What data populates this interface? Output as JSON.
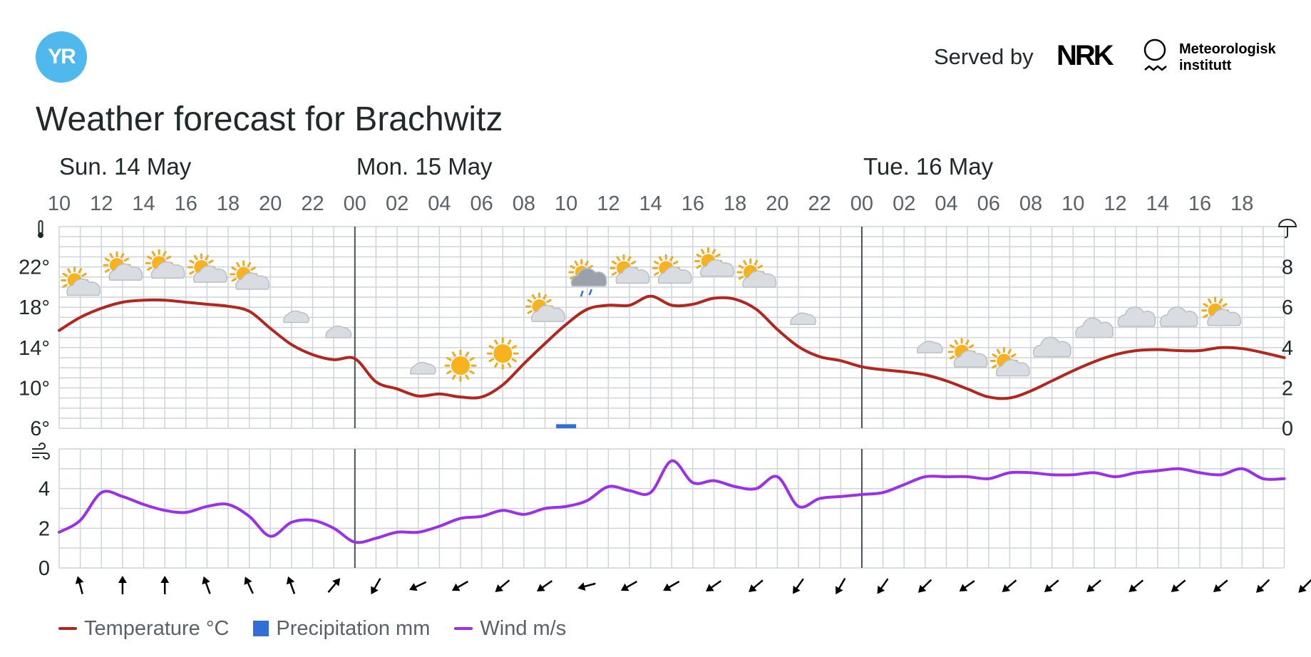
{
  "header": {
    "logo_text": "YR",
    "served_by": "Served by",
    "nrk_logo": "NRK",
    "met_line1": "Meteorologisk",
    "met_line2": "institutt"
  },
  "title": "Weather forecast for Brachwitz",
  "legend": {
    "temperature": "Temperature °C",
    "precipitation": "Precipitation mm",
    "wind": "Wind m/s"
  },
  "colors": {
    "temperature": "#b3261e",
    "precipitation": "#2f6fd6",
    "wind": "#9b30e6",
    "grid": "#ced4da",
    "day_separator": "#4a5056",
    "yr_blue": "#4fb8ec"
  },
  "chart_data": [
    {
      "type": "line",
      "days": [
        {
          "label": "Sun. 14 May",
          "hour": 10
        },
        {
          "label": "Mon. 15 May",
          "hour": 24
        },
        {
          "label": "Tue. 16 May",
          "hour": 48
        }
      ],
      "hour_labels": [
        "10",
        "12",
        "14",
        "16",
        "18",
        "20",
        "22",
        "00",
        "02",
        "04",
        "06",
        "08",
        "10",
        "12",
        "14",
        "16",
        "18",
        "20",
        "22",
        "00",
        "02",
        "04",
        "06",
        "08",
        "10",
        "12",
        "14",
        "16",
        "18"
      ],
      "temperature_axis": {
        "ticks": [
          "6°",
          "10°",
          "14°",
          "18°",
          "22°"
        ],
        "ylim": [
          6,
          26
        ]
      },
      "precipitation_axis": {
        "ticks": [
          "0",
          "2",
          "4",
          "6",
          "8"
        ],
        "ylim": [
          0,
          10
        ]
      },
      "series": [
        {
          "name": "Temperature °C",
          "hours": [
            10,
            11,
            12,
            13,
            14,
            15,
            16,
            17,
            18,
            19,
            20,
            21,
            22,
            23,
            24,
            25,
            26,
            27,
            28,
            29,
            30,
            31,
            32,
            33,
            34,
            35,
            36,
            37,
            38,
            39,
            40,
            41,
            42,
            43,
            44,
            45,
            46,
            47,
            48,
            49,
            50,
            51,
            52,
            53,
            54,
            55,
            56,
            57,
            58,
            59,
            60,
            61,
            62,
            63,
            64,
            65,
            66,
            67,
            68
          ],
          "values": [
            15.7,
            17.0,
            17.9,
            18.5,
            18.7,
            18.7,
            18.5,
            18.3,
            18.1,
            17.6,
            15.9,
            14.3,
            13.3,
            12.8,
            12.9,
            10.6,
            9.9,
            9.2,
            9.4,
            9.1,
            9.1,
            10.3,
            12.4,
            14.4,
            16.3,
            17.8,
            18.2,
            18.2,
            19.1,
            18.2,
            18.3,
            18.9,
            18.8,
            17.8,
            15.8,
            14.1,
            13.1,
            12.7,
            12.1,
            11.8,
            11.6,
            11.3,
            10.7,
            9.9,
            9.1,
            9.0,
            9.7,
            10.7,
            11.7,
            12.6,
            13.3,
            13.7,
            13.8,
            13.7,
            13.7,
            14.0,
            13.9,
            13.5,
            13.0
          ]
        },
        {
          "name": "Precipitation mm",
          "bars": [
            {
              "hour": 34,
              "value": 0.2
            }
          ]
        },
        {
          "name": "Wind m/s",
          "hours": [
            10,
            11,
            12,
            13,
            14,
            15,
            16,
            17,
            18,
            19,
            20,
            21,
            22,
            23,
            24,
            25,
            26,
            27,
            28,
            29,
            30,
            31,
            32,
            33,
            34,
            35,
            36,
            37,
            38,
            39,
            40,
            41,
            42,
            43,
            44,
            45,
            46,
            47,
            48,
            49,
            50,
            51,
            52,
            53,
            54,
            55,
            56,
            57,
            58,
            59,
            60,
            61,
            62,
            63,
            64,
            65,
            66,
            67,
            68
          ],
          "values": [
            1.8,
            2.4,
            3.8,
            3.6,
            3.2,
            2.9,
            2.8,
            3.1,
            3.2,
            2.6,
            1.6,
            2.3,
            2.4,
            2.0,
            1.3,
            1.5,
            1.8,
            1.8,
            2.1,
            2.5,
            2.6,
            2.9,
            2.7,
            3.0,
            3.1,
            3.4,
            4.1,
            3.9,
            3.8,
            5.4,
            4.3,
            4.4,
            4.1,
            4.0,
            4.6,
            3.1,
            3.5,
            3.6,
            3.7,
            3.8,
            4.2,
            4.6,
            4.6,
            4.6,
            4.5,
            4.8,
            4.8,
            4.7,
            4.7,
            4.8,
            4.6,
            4.8,
            4.9,
            5.0,
            4.8,
            4.7,
            5.0,
            4.5,
            4.5
          ]
        }
      ],
      "wind_axis": {
        "ticks": [
          "0",
          "2",
          "4"
        ],
        "ylim": [
          0,
          6
        ]
      },
      "weather_symbols": [
        {
          "hour": 11,
          "kind": "partly-cloudy-day"
        },
        {
          "hour": 13,
          "kind": "partly-cloudy-day"
        },
        {
          "hour": 15,
          "kind": "partly-cloudy-day"
        },
        {
          "hour": 17,
          "kind": "partly-cloudy-day"
        },
        {
          "hour": 19,
          "kind": "partly-cloudy-day"
        },
        {
          "hour": 21,
          "kind": "partly-cloudy-night"
        },
        {
          "hour": 23,
          "kind": "partly-cloudy-night"
        },
        {
          "hour": 25,
          "kind": "clear-night"
        },
        {
          "hour": 27,
          "kind": "partly-cloudy-night"
        },
        {
          "hour": 29,
          "kind": "clear-day"
        },
        {
          "hour": 31,
          "kind": "clear-day"
        },
        {
          "hour": 33,
          "kind": "partly-cloudy-day"
        },
        {
          "hour": 35,
          "kind": "rain-showers-day"
        },
        {
          "hour": 37,
          "kind": "partly-cloudy-day"
        },
        {
          "hour": 39,
          "kind": "partly-cloudy-day"
        },
        {
          "hour": 41,
          "kind": "partly-cloudy-day"
        },
        {
          "hour": 43,
          "kind": "partly-cloudy-day"
        },
        {
          "hour": 45,
          "kind": "partly-cloudy-night"
        },
        {
          "hour": 47,
          "kind": "clear-night"
        },
        {
          "hour": 49,
          "kind": "clear-night"
        },
        {
          "hour": 51,
          "kind": "partly-cloudy-night"
        },
        {
          "hour": 53,
          "kind": "partly-cloudy-day"
        },
        {
          "hour": 55,
          "kind": "partly-cloudy-day"
        },
        {
          "hour": 57,
          "kind": "cloudy"
        },
        {
          "hour": 59,
          "kind": "cloudy"
        },
        {
          "hour": 61,
          "kind": "cloudy"
        },
        {
          "hour": 63,
          "kind": "cloudy"
        },
        {
          "hour": 65,
          "kind": "partly-cloudy-day"
        }
      ],
      "wind_directions_deg": [
        255,
        270,
        270,
        250,
        245,
        250,
        310,
        120,
        155,
        150,
        140,
        145,
        165,
        150,
        150,
        145,
        140,
        125,
        120,
        125,
        135,
        145,
        140,
        140,
        140,
        140,
        140,
        140,
        135,
        135
      ],
      "grid": true,
      "legend_position": "bottom-left"
    }
  ]
}
